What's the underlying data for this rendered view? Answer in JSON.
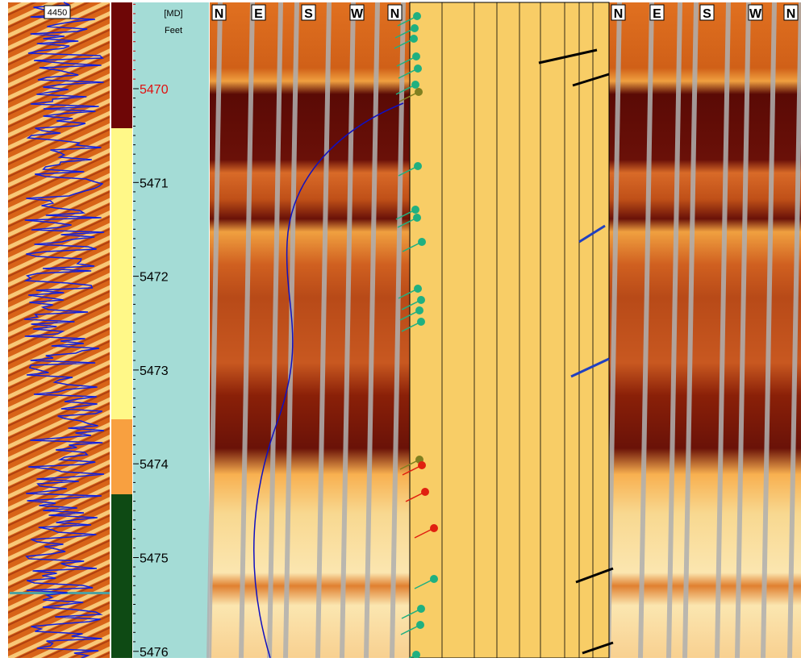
{
  "header": {
    "scale_label": "4450",
    "depth_ref": "[MD]",
    "depth_unit": "Feet"
  },
  "depth_labels": [
    "5470",
    "5471",
    "5472",
    "5473",
    "5474",
    "5475",
    "5476"
  ],
  "compass_left": [
    "N",
    "E",
    "S",
    "W",
    "N"
  ],
  "compass_right": [
    "N",
    "E",
    "S",
    "W",
    "N"
  ]
}
